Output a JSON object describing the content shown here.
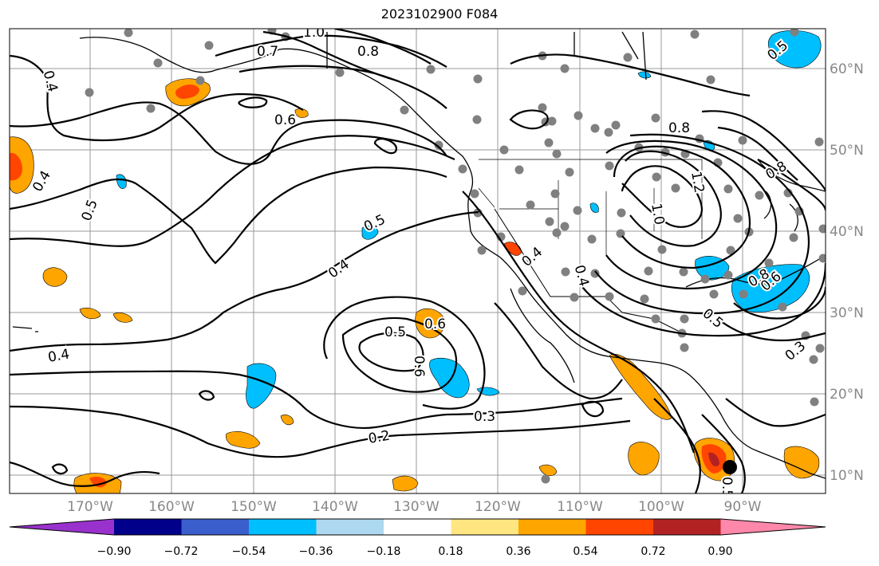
{
  "title": "2023102900 F084",
  "map": {
    "lon_labels": [
      "170°W",
      "160°W",
      "150°W",
      "140°W",
      "130°W",
      "120°W",
      "110°W",
      "100°W",
      "90°W"
    ],
    "lat_labels": [
      "60°N",
      "50°N",
      "40°N",
      "30°N",
      "20°N",
      "10°N"
    ],
    "contour_labels": [
      "1.0",
      "0.7",
      "0.8",
      "0.4",
      "0.6",
      "0.8",
      "0.4",
      "0.5",
      "0.5",
      "0.4",
      "0.4",
      "1.2",
      "1.0",
      "0.8",
      "0.8",
      "0.4",
      "0.6",
      "0.5",
      "0.5",
      "0.6",
      "0.6",
      "0.3",
      "0.2",
      "0.4",
      "0.3",
      "0.5",
      "0.5"
    ]
  },
  "colorbar": {
    "colors": [
      "#9932CC",
      "#00008B",
      "#3A5FCD",
      "#00BFFF",
      "#ADD8F0",
      "#FFFFFF",
      "#FFE680",
      "#FFA500",
      "#FF4500",
      "#B22222",
      "#FF88AA"
    ],
    "tick_labels": [
      "−0.90",
      "−0.72",
      "−0.54",
      "−0.36",
      "−0.18",
      "0.18",
      "0.36",
      "0.54",
      "0.72",
      "0.90"
    ]
  }
}
